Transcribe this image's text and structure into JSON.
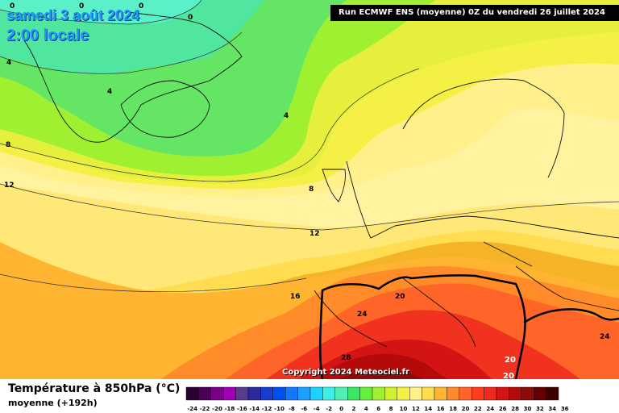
{
  "header": {
    "date": "samedi 3 août 2024",
    "time": "2:00 locale",
    "run_info": "Run ECMWF ENS (moyenne) 0Z du vendredi 26 juillet 2024"
  },
  "footer": {
    "param_title": "Température à 850hPa (°C)",
    "param_subtitle": "moyenne  (+192h)",
    "copyright": "Copyright 2024 Meteociel.fr"
  },
  "legend": {
    "labels": [
      "-24",
      "-22",
      "-20",
      "-18",
      "-16",
      "-14",
      "-12",
      "-10",
      "-8",
      "-6",
      "-4",
      "-2",
      "0",
      "2",
      "4",
      "6",
      "8",
      "10",
      "12",
      "14",
      "16",
      "18",
      "20",
      "22",
      "24",
      "26",
      "28",
      "30",
      "32",
      "34",
      "36"
    ],
    "colors": [
      "#2b0033",
      "#4b0057",
      "#7a008c",
      "#a000b4",
      "#5a3c8c",
      "#2a2a9a",
      "#1a3ccc",
      "#0050f0",
      "#1478ff",
      "#1ea0ff",
      "#1ed2ff",
      "#3cf0e6",
      "#50f0b4",
      "#3ce664",
      "#64f03c",
      "#a0f032",
      "#d2f032",
      "#f5f046",
      "#fff08c",
      "#ffdc50",
      "#ffb432",
      "#ff8c28",
      "#ff6428",
      "#ff3c1e",
      "#f0281e",
      "#d21414",
      "#b40a0a",
      "#8c0a0a",
      "#640000",
      "#3c0000"
    ]
  },
  "isotherms": {
    "labels": [
      "0",
      "0",
      "0",
      "0",
      "4",
      "4",
      "4",
      "8",
      "8",
      "12",
      "12",
      "16",
      "20",
      "24",
      "28",
      "20",
      "20",
      "24"
    ]
  }
}
